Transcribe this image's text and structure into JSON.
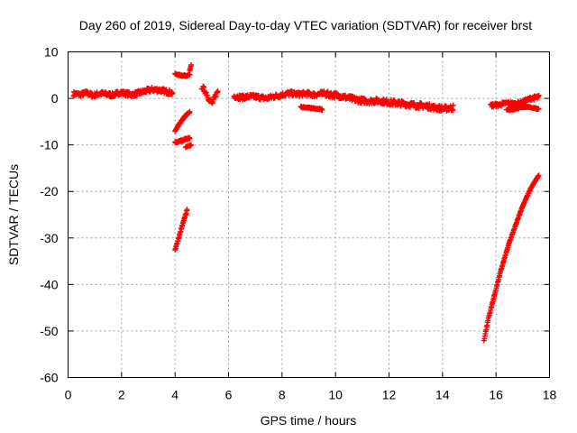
{
  "chart_data": {
    "type": "scatter",
    "title": "Day 260 of 2019, Sidereal Day-to-day VTEC variation (SDTVAR) for receiver brst",
    "xlabel": "GPS time / hours",
    "ylabel": "SDTVAR / TECUs",
    "xlim": [
      0,
      18
    ],
    "ylim": [
      -60,
      10
    ],
    "xticks": [
      0,
      2,
      4,
      6,
      8,
      10,
      12,
      14,
      16,
      18
    ],
    "yticks": [
      10,
      0,
      -10,
      -20,
      -30,
      -40,
      -50,
      -60
    ],
    "xtick_labels": [
      "0",
      "2",
      "4",
      "6",
      "8",
      "10",
      "12",
      "14",
      "16",
      "18"
    ],
    "ytick_labels": [
      "10",
      "0",
      "-10",
      "-20",
      "-30",
      "-40",
      "-50",
      "-60"
    ],
    "grid": true,
    "marker": "+",
    "series": [
      {
        "name": "SDTVAR",
        "color": "#ff0000",
        "segments": [
          {
            "x0": 0.2,
            "x1": 3.9,
            "y": [
              1.0,
              0.8,
              1.2,
              0.6,
              1.1,
              0.9,
              0.7,
              1.3,
              1.0,
              0.8,
              1.2,
              1.6,
              1.9,
              1.8,
              1.5,
              1.2
            ],
            "spread": 1.0
          },
          {
            "x0": 4.0,
            "x1": 4.55,
            "y": [
              5.2,
              5.0,
              4.9,
              5.1
            ],
            "spread": 0.3
          },
          {
            "x0": 4.55,
            "x1": 4.6,
            "y": [
              6.0,
              7.2
            ],
            "spread": 0.0
          },
          {
            "x0": 4.0,
            "x1": 4.55,
            "y": [
              -7.0,
              -5.8,
              -4.6,
              -3.6,
              -3.0
            ],
            "spread": 0.4
          },
          {
            "x0": 4.0,
            "x1": 4.55,
            "y": [
              -9.5,
              -9.2,
              -8.8,
              -8.5
            ],
            "spread": 0.4
          },
          {
            "x0": 4.4,
            "x1": 4.6,
            "y": [
              -10.5,
              -10.0
            ],
            "spread": 0.2
          },
          {
            "x0": 4.0,
            "x1": 4.45,
            "y": [
              -32.5,
              -30.5,
              -28.2,
              -26.0,
              -24.0
            ],
            "spread": 0.3
          },
          {
            "x0": 5.0,
            "x1": 5.6,
            "y": [
              2.5,
              1.8,
              0.8,
              -0.5,
              -1.0,
              0.5,
              1.5
            ],
            "spread": 1.0
          },
          {
            "x0": 6.2,
            "x1": 9.5,
            "y": [
              0.5,
              0.2,
              0.4,
              0.3,
              0.0,
              0.4,
              0.8,
              1.1,
              0.9,
              1.0,
              0.8,
              1.0
            ],
            "spread": 1.0
          },
          {
            "x0": 8.7,
            "x1": 9.5,
            "y": [
              -1.8,
              -2.0,
              -2.2,
              -2.4
            ],
            "spread": 0.3
          },
          {
            "x0": 9.5,
            "x1": 14.4,
            "y": [
              1.0,
              0.8,
              0.5,
              0.0,
              -0.4,
              -0.6,
              -0.5,
              -0.8,
              -1.0,
              -1.2,
              -1.5,
              -1.6,
              -2.0,
              -2.2,
              -2.0
            ],
            "spread": 1.2
          },
          {
            "x0": 15.8,
            "x1": 17.6,
            "y": [
              -1.5,
              -1.4,
              -1.0,
              -1.2,
              -0.8,
              0.0,
              0.3
            ],
            "spread": 0.8
          },
          {
            "x0": 16.4,
            "x1": 17.6,
            "y": [
              -2.5,
              -2.3,
              -2.0,
              -1.8,
              -2.0,
              -2.3
            ],
            "spread": 0.3
          },
          {
            "x0": 15.55,
            "x1": 17.6,
            "y": [
              -52.0,
              -47.5,
              -44.0,
              -40.5,
              -37.0,
              -34.0,
              -31.0,
              -28.5,
              -26.0,
              -23.5,
              -21.5,
              -19.5,
              -18.0,
              -16.5
            ],
            "spread": 0.2
          }
        ]
      }
    ]
  }
}
